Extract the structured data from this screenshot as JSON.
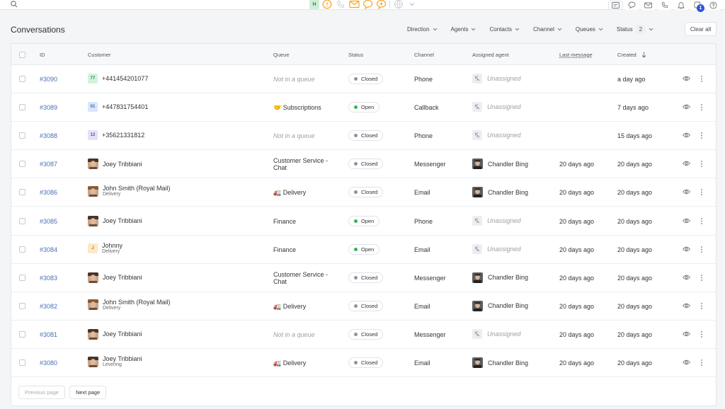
{
  "topbar": {
    "center_badge": "H",
    "alert_count": "1",
    "icons": [
      "search-icon",
      "alert-icon",
      "phone-icon",
      "mail-icon",
      "chat-icon",
      "chat-plus-icon",
      "globe-icon",
      "chevron-down-icon"
    ],
    "right_icons": [
      "card-icon",
      "chat-icon",
      "mail-icon",
      "phone-icon",
      "bell-icon",
      "notification-icon",
      "help-icon"
    ],
    "notification_count": "1",
    "accent": "#f5a623"
  },
  "page": {
    "title": "Conversations"
  },
  "filters": [
    {
      "label": "Direction"
    },
    {
      "label": "Agents"
    },
    {
      "label": "Contacts"
    },
    {
      "label": "Channel"
    },
    {
      "label": "Queues"
    },
    {
      "label": "Status",
      "count": "2"
    }
  ],
  "clear_all_label": "Clear all",
  "table": {
    "headers": {
      "id": "ID",
      "customer": "Customer",
      "queue": "Queue",
      "status": "Status",
      "channel": "Channel",
      "agent": "Assigned agent",
      "last_message": "Last message",
      "created": "Created"
    },
    "rows": [
      {
        "id": "#3090",
        "avatar": "77",
        "avatar_bg": "#d3f2dc",
        "avatar_fg": "#2f8d50",
        "customer": "+441454201077",
        "sub": "",
        "queue": "Not in a queue",
        "queue_type": "none",
        "status": "Closed",
        "channel": "Phone",
        "agent": "Unassigned",
        "last_message": "",
        "created": "a day ago"
      },
      {
        "id": "#3089",
        "avatar": "01",
        "avatar_bg": "#d8e6fb",
        "avatar_fg": "#3c66b8",
        "customer": "+447831754401",
        "sub": "",
        "queue": "🤝 Subscriptions",
        "queue_type": "text",
        "status": "Open",
        "channel": "Callback",
        "agent": "Unassigned",
        "last_message": "",
        "created": "7 days ago"
      },
      {
        "id": "#3088",
        "avatar": "12",
        "avatar_bg": "#e3e1f7",
        "avatar_fg": "#5a54a8",
        "customer": "+35621331812",
        "sub": "",
        "queue": "Not in a queue",
        "queue_type": "none",
        "status": "Closed",
        "channel": "Phone",
        "agent": "Unassigned",
        "last_message": "",
        "created": "15 days ago"
      },
      {
        "id": "#3087",
        "avatar": "photo",
        "customer": "Joey Tribbiani",
        "sub": "",
        "queue": "Customer Service - Chat",
        "queue_type": "text",
        "status": "Closed",
        "channel": "Messenger",
        "agent": "Chandler Bing",
        "last_message": "20 days ago",
        "created": "20 days ago"
      },
      {
        "id": "#3086",
        "avatar": "photo2",
        "customer": "John Smith (Royal Mail)",
        "sub": "Delivery",
        "queue": "🚛 Delivery",
        "queue_type": "text",
        "status": "Closed",
        "channel": "Email",
        "agent": "Chandler Bing",
        "last_message": "20 days ago",
        "created": "20 days ago"
      },
      {
        "id": "#3085",
        "avatar": "photo",
        "customer": "Joey Tribbiani",
        "sub": "",
        "queue": "Finance",
        "queue_type": "text",
        "status": "Open",
        "channel": "Phone",
        "agent": "Unassigned",
        "last_message": "20 days ago",
        "created": "20 days ago"
      },
      {
        "id": "#3084",
        "avatar": "J",
        "avatar_bg": "#fde9c8",
        "avatar_fg": "#b57b1c",
        "customer": "Johnny",
        "sub": "Delivery",
        "queue": "Finance",
        "queue_type": "text",
        "status": "Open",
        "channel": "Email",
        "agent": "Unassigned",
        "last_message": "20 days ago",
        "created": "20 days ago"
      },
      {
        "id": "#3083",
        "avatar": "photo",
        "customer": "Joey Tribbiani",
        "sub": "",
        "queue": "Customer Service - Chat",
        "queue_type": "text",
        "status": "Closed",
        "channel": "Messenger",
        "agent": "Chandler Bing",
        "last_message": "20 days ago",
        "created": "20 days ago"
      },
      {
        "id": "#3082",
        "avatar": "photo2",
        "customer": "John Smith (Royal Mail)",
        "sub": "Delivery",
        "queue": "🚛 Delivery",
        "queue_type": "text",
        "status": "Closed",
        "channel": "Email",
        "agent": "Chandler Bing",
        "last_message": "20 days ago",
        "created": "20 days ago"
      },
      {
        "id": "#3081",
        "avatar": "photo",
        "customer": "Joey Tribbiani",
        "sub": "",
        "queue": "Not in a queue",
        "queue_type": "none",
        "status": "Closed",
        "channel": "Messenger",
        "agent": "Unassigned",
        "last_message": "20 days ago",
        "created": "20 days ago"
      },
      {
        "id": "#3080",
        "avatar": "photo",
        "customer": "Joey Tribbiani",
        "sub": "Levering",
        "queue": "🚛 Delivery",
        "queue_type": "text",
        "status": "Closed",
        "channel": "Email",
        "agent": "Chandler Bing",
        "last_message": "20 days ago",
        "created": "20 days ago"
      }
    ]
  },
  "pager": {
    "previous": "Previous page",
    "next": "Next page"
  },
  "colors": {
    "open_dot": "#2fb45a",
    "closed_dot": "#8a93a3",
    "link": "#4a6fb5"
  }
}
